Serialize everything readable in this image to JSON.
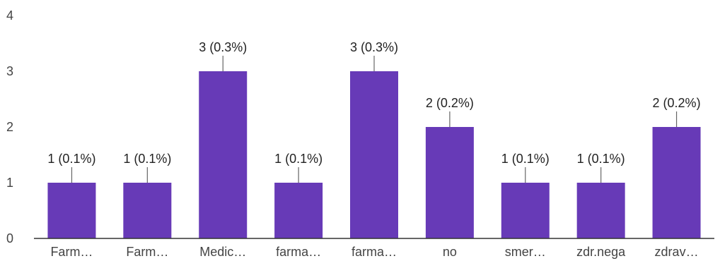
{
  "chart_data": {
    "type": "bar",
    "categories": [
      "Farm…",
      "Farm…",
      "Medic…",
      "farma…",
      "farma…",
      "no",
      "smer…",
      "zdr.nega",
      "zdrav…"
    ],
    "values": [
      1,
      1,
      3,
      1,
      3,
      2,
      1,
      1,
      2
    ],
    "data_labels": [
      "1 (0.1%)",
      "1 (0.1%)",
      "3 (0.3%)",
      "1 (0.1%)",
      "3 (0.3%)",
      "2 (0.2%)",
      "1 (0.1%)",
      "1 (0.1%)",
      "2 (0.2%)"
    ],
    "yticks": [
      0,
      1,
      2,
      3,
      4
    ],
    "ylim": [
      0,
      4
    ],
    "title": "",
    "xlabel": "",
    "ylabel": "",
    "grid": false,
    "colors": {
      "bar": "#673ab7",
      "axis": "#333333",
      "leader": "#666666"
    }
  }
}
